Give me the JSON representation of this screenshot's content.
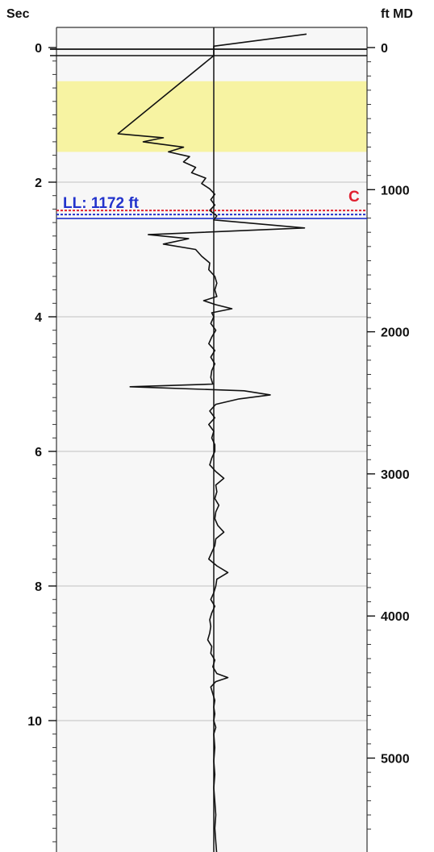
{
  "chart_data": {
    "type": "line",
    "left_axis_label": "Sec",
    "right_axis_label": "ft MD",
    "left_axis": {
      "range": [
        -0.5,
        12
      ],
      "ticks": [
        0,
        2,
        4,
        6,
        8,
        10
      ],
      "minor_step": 0.2
    },
    "right_axis": {
      "range": [
        -200,
        5500
      ],
      "ticks": [
        0,
        1000,
        2000,
        3000,
        4000,
        5000
      ],
      "minor_step": 100
    },
    "horizontal_gridlines_sec": [
      2,
      4,
      6,
      8,
      10
    ],
    "highlight_band_sec": [
      0.5,
      1.55
    ],
    "highlight_color": "#f7f3a2",
    "plot_background": "#f7f7f7",
    "reference_line_color": "#222222",
    "annotations": {
      "ll_label": "LL: 1172 ft",
      "ll_line_sec": 2.48,
      "ll_color": "#2233cc",
      "c_label": "C",
      "c_line_sec": 2.42,
      "c_color": "#e02030"
    },
    "series": [
      {
        "points": [
          [
            -0.2,
            9.2
          ],
          [
            -0.02,
            0
          ],
          [
            0.12,
            0
          ],
          [
            1.28,
            -9.5
          ],
          [
            1.34,
            -5.0
          ],
          [
            1.4,
            -7.0
          ],
          [
            1.48,
            -3.0
          ],
          [
            1.55,
            -4.5
          ],
          [
            1.62,
            -2.4
          ],
          [
            1.7,
            -3.0
          ],
          [
            1.78,
            -1.8
          ],
          [
            1.86,
            -2.2
          ],
          [
            1.94,
            -0.8
          ],
          [
            2.02,
            -1.2
          ],
          [
            2.1,
            -0.4
          ],
          [
            2.18,
            0.1
          ],
          [
            2.26,
            -0.3
          ],
          [
            2.34,
            0.1
          ],
          [
            2.42,
            -0.4
          ],
          [
            2.5,
            0.3
          ],
          [
            2.56,
            0
          ],
          [
            2.68,
            9.0
          ],
          [
            2.78,
            -6.5
          ],
          [
            2.84,
            -2.5
          ],
          [
            2.92,
            -5.0
          ],
          [
            3.0,
            -1.8
          ],
          [
            3.1,
            -1.2
          ],
          [
            3.2,
            -0.4
          ],
          [
            3.3,
            -0.5
          ],
          [
            3.4,
            0.1
          ],
          [
            3.5,
            0.3
          ],
          [
            3.6,
            0.1
          ],
          [
            3.7,
            0.3
          ],
          [
            3.76,
            -1.0
          ],
          [
            3.82,
            0.2
          ],
          [
            3.88,
            1.8
          ],
          [
            3.94,
            -0.2
          ],
          [
            4.0,
            0
          ],
          [
            4.1,
            -0.3
          ],
          [
            4.2,
            0.2
          ],
          [
            4.3,
            -0.2
          ],
          [
            4.4,
            -0.5
          ],
          [
            4.5,
            0.1
          ],
          [
            4.6,
            -0.3
          ],
          [
            4.7,
            0.1
          ],
          [
            4.8,
            -0.2
          ],
          [
            4.9,
            -0.3
          ],
          [
            5.0,
            -0.1
          ],
          [
            5.04,
            -8.3
          ],
          [
            5.1,
            3.0
          ],
          [
            5.16,
            5.6
          ],
          [
            5.22,
            2.5
          ],
          [
            5.3,
            0.2
          ],
          [
            5.4,
            -0.4
          ],
          [
            5.5,
            0.1
          ],
          [
            5.6,
            -0.5
          ],
          [
            5.7,
            0
          ],
          [
            5.8,
            -0.2
          ],
          [
            5.9,
            0.1
          ],
          [
            6.0,
            0.1
          ],
          [
            6.1,
            -0.2
          ],
          [
            6.2,
            -0.4
          ],
          [
            6.3,
            0.2
          ],
          [
            6.4,
            1.0
          ],
          [
            6.5,
            0.2
          ],
          [
            6.6,
            0.3
          ],
          [
            6.7,
            0.1
          ],
          [
            6.8,
            0.5
          ],
          [
            6.9,
            0.2
          ],
          [
            7.0,
            0.1
          ],
          [
            7.1,
            0.4
          ],
          [
            7.2,
            1.0
          ],
          [
            7.3,
            0.2
          ],
          [
            7.4,
            0.1
          ],
          [
            7.5,
            -0.2
          ],
          [
            7.6,
            -0.5
          ],
          [
            7.7,
            0.3
          ],
          [
            7.8,
            1.4
          ],
          [
            7.9,
            0.3
          ],
          [
            8.0,
            0.2
          ],
          [
            8.1,
            0
          ],
          [
            8.2,
            -0.3
          ],
          [
            8.3,
            0.1
          ],
          [
            8.4,
            -0.2
          ],
          [
            8.5,
            -0.4
          ],
          [
            8.6,
            -0.3
          ],
          [
            8.7,
            -0.4
          ],
          [
            8.8,
            -0.6
          ],
          [
            8.9,
            -0.2
          ],
          [
            9.0,
            -0.3
          ],
          [
            9.1,
            0.1
          ],
          [
            9.2,
            -0.1
          ],
          [
            9.3,
            0.3
          ],
          [
            9.36,
            1.4
          ],
          [
            9.42,
            0.2
          ],
          [
            9.5,
            -0.3
          ],
          [
            9.6,
            -0.1
          ],
          [
            9.7,
            0.1
          ],
          [
            9.8,
            0
          ],
          [
            9.9,
            0.1
          ],
          [
            10.0,
            0
          ],
          [
            10.1,
            0.2
          ],
          [
            10.2,
            0
          ],
          [
            10.4,
            0.1
          ],
          [
            10.6,
            0
          ],
          [
            10.8,
            0.1
          ],
          [
            11.0,
            0
          ],
          [
            11.2,
            0.1
          ],
          [
            11.4,
            0.2
          ],
          [
            11.6,
            0.1
          ],
          [
            11.8,
            0.2
          ],
          [
            12.0,
            0.3
          ]
        ]
      }
    ]
  }
}
